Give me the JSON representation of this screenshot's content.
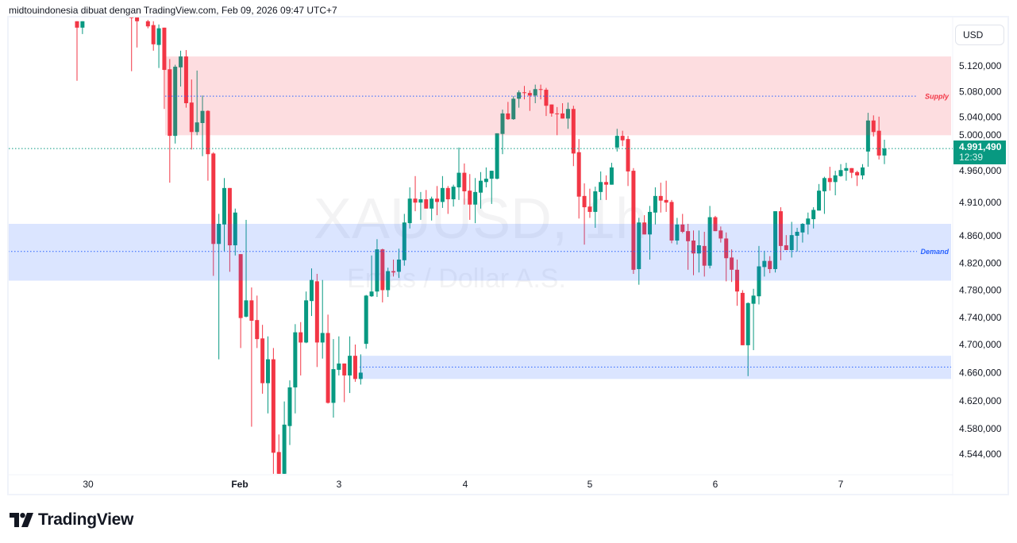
{
  "header": {
    "attribution": "midtouindonesia dibuat dengan TradingView.com, Feb 09, 2026 09:47 UTC+7"
  },
  "watermark": {
    "symbol": "XAUUSD, 1h",
    "description": "Emas / Dollar A.S."
  },
  "price_axis": {
    "currency_button": "USD",
    "last_price_label": "4.991,490",
    "countdown": "12:39"
  },
  "logo": {
    "text": "TradingView"
  },
  "colors": {
    "up": "#089981",
    "down": "#f23645",
    "supply_zone": "#f23645",
    "demand_zone": "#2962ff",
    "last_price_line": "#089981"
  },
  "chart_data": {
    "type": "candlestick",
    "symbol": "XAUUSD",
    "interval": "1h",
    "ylim": [
      4525,
      5150
    ],
    "y_scale": "log",
    "grid": false,
    "y_ticks": [
      {
        "value": 5120,
        "label": "5.120,000"
      },
      {
        "value": 5080,
        "label": "5.080,000"
      },
      {
        "value": 5040,
        "label": "5.040,000"
      },
      {
        "value": 5000,
        "label": "5.000,000"
      },
      {
        "value": 4960,
        "label": "4.960,000"
      },
      {
        "value": 4910,
        "label": "4.910,000"
      },
      {
        "value": 4860,
        "label": "4.860,000"
      },
      {
        "value": 4820,
        "label": "4.820,000"
      },
      {
        "value": 4780,
        "label": "4.780,000"
      },
      {
        "value": 4740,
        "label": "4.740,000"
      },
      {
        "value": 4700,
        "label": "4.700,000"
      },
      {
        "value": 4660,
        "label": "4.660,000"
      },
      {
        "value": 4620,
        "label": "4.620,000"
      },
      {
        "value": 4580,
        "label": "4.580,000"
      },
      {
        "value": 4544,
        "label": "4.544,000"
      }
    ],
    "x_ticks": [
      "30",
      "Feb",
      "3",
      "4",
      "5",
      "6",
      "7"
    ],
    "last_price": 4991.49,
    "zones": [
      {
        "label": "Supply",
        "top": 5135,
        "bottom": 5012,
        "line": 5073,
        "kind": "supply"
      },
      {
        "label": "Demand",
        "top": 4878,
        "bottom": 4794,
        "line": 4837,
        "kind": "demand"
      },
      {
        "label": "",
        "top": 4684,
        "bottom": 4651,
        "line": 4668,
        "kind": "demand"
      }
    ],
    "ohlc_fields": [
      "open",
      "high",
      "low",
      "close"
    ],
    "candles": [
      [
        5190,
        5190,
        5097,
        5180
      ],
      [
        5180,
        5190,
        5170,
        5190
      ],
      null,
      null,
      null,
      null,
      null,
      null,
      null,
      null,
      [
        5210,
        5220,
        5112,
        5195
      ],
      [
        5200,
        5210,
        5149,
        5190
      ],
      null,
      [
        5190,
        5192,
        5179,
        5182
      ],
      [
        5184,
        5190,
        5144,
        5154
      ],
      [
        5153,
        5185,
        5117,
        5179
      ],
      [
        5180,
        5180,
        5053,
        5114
      ],
      [
        5115,
        5131,
        4940,
        5011
      ],
      [
        5011,
        5122,
        4999,
        5119
      ],
      [
        5118,
        5144,
        5088,
        5135
      ],
      [
        5135,
        5145,
        5055,
        5062
      ],
      [
        5063,
        5099,
        4990,
        5017
      ],
      [
        5017,
        5113,
        5012,
        5032
      ],
      [
        5031,
        5074,
        4980,
        5050
      ],
      [
        5050,
        5051,
        4943,
        4983
      ],
      [
        4984,
        4986,
        4801,
        4848
      ],
      [
        4848,
        4893,
        4679,
        4878
      ],
      [
        4877,
        4947,
        4837,
        4932
      ],
      [
        4932,
        4932,
        4807,
        4846
      ],
      [
        4846,
        4901,
        4831,
        4895
      ],
      [
        4833,
        4833,
        4695,
        4739
      ],
      [
        4741,
        4884,
        4740,
        4765
      ],
      [
        4765,
        4784,
        4583,
        4735
      ],
      [
        4736,
        4772,
        4695,
        4708
      ],
      [
        4709,
        4729,
        4630,
        4645
      ],
      [
        4645,
        4712,
        4602,
        4679
      ],
      [
        4679,
        4695,
        4516,
        4546
      ],
      [
        4547,
        4572,
        4510,
        4516
      ],
      [
        4516,
        4619,
        4510,
        4586
      ],
      [
        4584,
        4649,
        4557,
        4639
      ],
      [
        4639,
        4730,
        4602,
        4718
      ],
      [
        4718,
        4733,
        4656,
        4703
      ],
      [
        4703,
        4778,
        4702,
        4765
      ],
      [
        4764,
        4812,
        4742,
        4795
      ],
      [
        4793,
        4804,
        4668,
        4703
      ],
      [
        4703,
        4795,
        4680,
        4717
      ],
      [
        4717,
        4744,
        4616,
        4617
      ],
      [
        4617,
        4708,
        4596,
        4665
      ],
      [
        4664,
        4712,
        4656,
        4673
      ],
      [
        4673,
        4673,
        4618,
        4656
      ],
      [
        4656,
        4712,
        4631,
        4684
      ],
      [
        4684,
        4700,
        4647,
        4651
      ],
      [
        4651,
        4686,
        4643,
        4660
      ],
      [
        4701,
        4773,
        4694,
        4772
      ],
      [
        4771,
        4831,
        4770,
        4778
      ],
      [
        4778,
        4855,
        4770,
        4840
      ],
      [
        4840,
        4841,
        4762,
        4780
      ],
      [
        4780,
        4813,
        4770,
        4808
      ],
      [
        4808,
        4825,
        4800,
        4806
      ],
      [
        4807,
        4841,
        4798,
        4825
      ],
      [
        4824,
        4893,
        4816,
        4880
      ],
      [
        4879,
        4933,
        4871,
        4916
      ],
      [
        4916,
        4950,
        4897,
        4910
      ],
      [
        4910,
        4926,
        4884,
        4915
      ],
      [
        4915,
        4929,
        4901,
        4901
      ],
      [
        4901,
        4919,
        4883,
        4916
      ],
      [
        4916,
        4935,
        4891,
        4911
      ],
      [
        4911,
        4950,
        4902,
        4932
      ],
      [
        4932,
        4935,
        4893,
        4915
      ],
      [
        4915,
        4937,
        4904,
        4934
      ],
      [
        4933,
        4993,
        4914,
        4955
      ],
      [
        4955,
        4969,
        4907,
        4927
      ],
      [
        4928,
        4953,
        4884,
        4907
      ],
      [
        4907,
        4947,
        4879,
        4926
      ],
      [
        4925,
        4956,
        4901,
        4943
      ],
      [
        4941,
        4963,
        4933,
        4946
      ],
      [
        4946,
        4958,
        4908,
        4958
      ],
      [
        4946,
        5015,
        4945,
        5015
      ],
      [
        5014,
        5052,
        4983,
        5046
      ],
      [
        5046,
        5064,
        5036,
        5037
      ],
      [
        5037,
        5073,
        5036,
        5069
      ],
      [
        5069,
        5082,
        5055,
        5079
      ],
      [
        5079,
        5089,
        5068,
        5078
      ],
      [
        5078,
        5082,
        5050,
        5074
      ],
      [
        5074,
        5091,
        5062,
        5084
      ],
      [
        5084,
        5091,
        5068,
        5083
      ],
      [
        5083,
        5086,
        5042,
        5058
      ],
      [
        5060,
        5060,
        5041,
        5046
      ],
      [
        5046,
        5056,
        5012,
        5045
      ],
      [
        5046,
        5062,
        5038,
        5038
      ],
      [
        5038,
        5063,
        5022,
        5053
      ],
      [
        5053,
        5058,
        4965,
        4984
      ],
      [
        4986,
        5006,
        4886,
        4919
      ],
      [
        4920,
        4939,
        4847,
        4903
      ],
      [
        4904,
        4931,
        4887,
        4896
      ],
      [
        4896,
        4934,
        4872,
        4927
      ],
      [
        4926,
        4957,
        4914,
        4941
      ],
      [
        4941,
        4951,
        4914,
        4937
      ],
      [
        4937,
        4970,
        4937,
        4963
      ],
      [
        4993,
        5022,
        4987,
        5011
      ],
      [
        5011,
        5019,
        4995,
        5004
      ],
      [
        5006,
        5011,
        4935,
        4957
      ],
      [
        4958,
        4962,
        4804,
        4810
      ],
      [
        4811,
        4887,
        4788,
        4880
      ],
      [
        4880,
        4891,
        4862,
        4862
      ],
      [
        4862,
        4905,
        4825,
        4896
      ],
      [
        4895,
        4933,
        4877,
        4920
      ],
      [
        4920,
        4940,
        4895,
        4913
      ],
      [
        4914,
        4943,
        4896,
        4910
      ],
      [
        4911,
        4914,
        4849,
        4853
      ],
      [
        4853,
        4887,
        4847,
        4877
      ],
      [
        4877,
        4893,
        4864,
        4866
      ],
      [
        4867,
        4878,
        4810,
        4852
      ],
      [
        4853,
        4868,
        4802,
        4834
      ],
      [
        4834,
        4868,
        4806,
        4846
      ],
      [
        4845,
        4866,
        4800,
        4816
      ],
      [
        4816,
        4905,
        4812,
        4888
      ],
      [
        4888,
        4890,
        4867,
        4867
      ],
      [
        4868,
        4874,
        4850,
        4856
      ],
      [
        4856,
        4865,
        4793,
        4827
      ],
      [
        4828,
        4840,
        4792,
        4810
      ],
      [
        4810,
        4825,
        4757,
        4778
      ],
      [
        4776,
        4780,
        4699,
        4699
      ],
      [
        4699,
        4762,
        4655,
        4761
      ],
      [
        4760,
        4782,
        4692,
        4772
      ],
      [
        4771,
        4845,
        4759,
        4815
      ],
      [
        4814,
        4838,
        4800,
        4823
      ],
      [
        4823,
        4830,
        4805,
        4811
      ],
      [
        4811,
        4897,
        4806,
        4897
      ],
      [
        4897,
        4903,
        4824,
        4845
      ],
      [
        4846,
        4861,
        4839,
        4839
      ],
      [
        4839,
        4881,
        4828,
        4861
      ],
      [
        4860,
        4872,
        4837,
        4866
      ],
      [
        4865,
        4879,
        4850,
        4878
      ],
      [
        4877,
        4895,
        4862,
        4886
      ],
      [
        4885,
        4903,
        4871,
        4899
      ],
      [
        4898,
        4938,
        4898,
        4928
      ],
      [
        4927,
        4949,
        4893,
        4947
      ],
      [
        4947,
        4964,
        4928,
        4941
      ],
      [
        4941,
        4958,
        4921,
        4951
      ],
      [
        4950,
        4968,
        4949,
        4959
      ],
      [
        4958,
        4970,
        4943,
        4962
      ],
      [
        4962,
        4962,
        4947,
        4955
      ],
      [
        4956,
        4958,
        4935,
        4951
      ],
      [
        4951,
        4968,
        4945,
        4963
      ],
      [
        4987,
        5047,
        4964,
        5035
      ],
      [
        5035,
        5043,
        5010,
        5017
      ],
      [
        5019,
        5041,
        4975,
        4981
      ],
      [
        4981,
        5005,
        4968,
        4991.49
      ]
    ]
  }
}
